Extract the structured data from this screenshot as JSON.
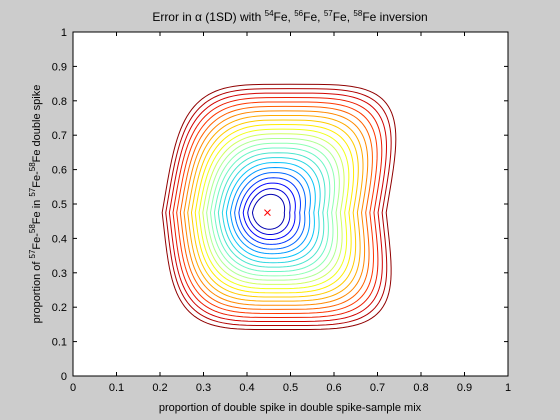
{
  "chart_data": {
    "type": "contour",
    "title": {
      "prefix": "Error in ",
      "alpha": "α",
      "suffix": " (1SD) with ",
      "isotopes": [
        {
          "mass": "54",
          "symbol": "Fe",
          "sep": ", "
        },
        {
          "mass": "56",
          "symbol": "Fe",
          "sep": ", "
        },
        {
          "mass": "57",
          "symbol": "Fe",
          "sep": ", "
        },
        {
          "mass": "58",
          "symbol": "Fe",
          "sep": " inversion"
        }
      ]
    },
    "xlabel": "proportion of double spike in double spike-sample mix",
    "ylabel": {
      "before": "proportion of ",
      "mass1": "57",
      "symbol1": "Fe-",
      "mass2": "58",
      "symbol2": "Fe",
      "after": " in ",
      "mass3": "57",
      "symbol3": "Fe-",
      "mass4": "58",
      "symbol4": "Fe double spike"
    },
    "xlim": [
      0,
      1
    ],
    "ylim": [
      0,
      1
    ],
    "xticks": [
      "0",
      "0.1",
      "0.2",
      "0.3",
      "0.4",
      "0.5",
      "0.6",
      "0.7",
      "0.8",
      "0.9",
      "1"
    ],
    "yticks": [
      "0",
      "0.1",
      "0.2",
      "0.3",
      "0.4",
      "0.5",
      "0.6",
      "0.7",
      "0.8",
      "0.9",
      "1"
    ],
    "grid": false,
    "optimum": {
      "x": 0.447,
      "y": 0.475,
      "marker": "x",
      "color": "#ff0000"
    },
    "colormap": [
      "#0000b0",
      "#0000ff",
      "#0060ff",
      "#00c0ff",
      "#40e0d0",
      "#80ffc0",
      "#c0ff80",
      "#ffff00",
      "#ffc000",
      "#ff8000",
      "#ff3000",
      "#d00000",
      "#900000"
    ],
    "contour_levels": 24,
    "background": "#cccccc",
    "plot_background": "#ffffff"
  }
}
